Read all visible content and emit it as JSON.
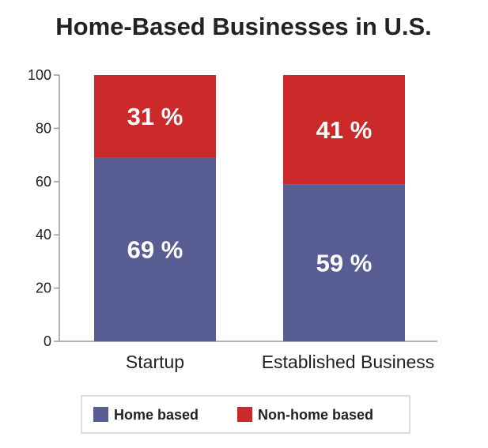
{
  "chart_data": {
    "type": "bar",
    "stacked": true,
    "title": "Home-Based Businesses in U.S.",
    "categories": [
      "Startup",
      "Established Business"
    ],
    "series": [
      {
        "name": "Home based",
        "values": [
          69,
          59
        ],
        "labels": [
          "69 %",
          "59 %"
        ],
        "color": "#585e93"
      },
      {
        "name": "Non-home based",
        "values": [
          31,
          41
        ],
        "labels": [
          "31 %",
          "41 %"
        ],
        "color": "#cc2a2a"
      }
    ],
    "ylim": [
      0,
      100
    ],
    "yticks": [
      0,
      20,
      40,
      60,
      80,
      100
    ],
    "xlabel": "",
    "ylabel": "",
    "grid": false,
    "legend_position": "bottom"
  }
}
